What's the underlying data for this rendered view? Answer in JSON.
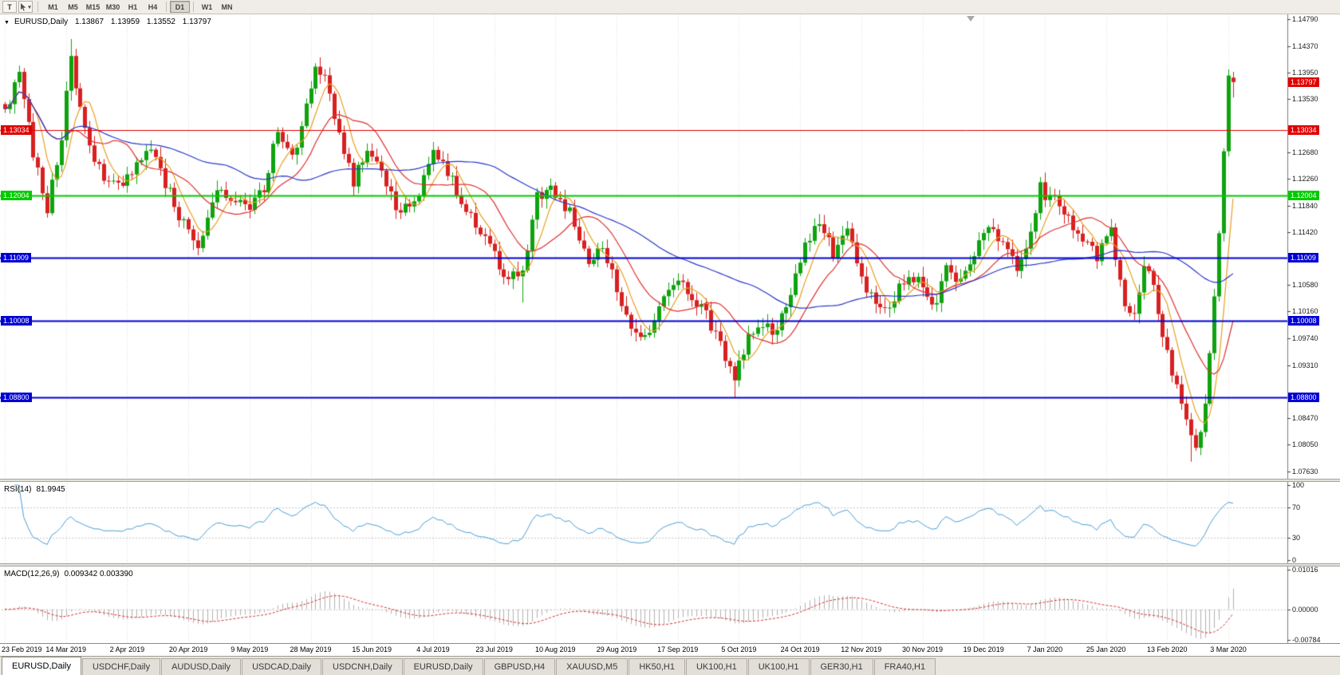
{
  "toolbar": {
    "text_tool_label": "T",
    "periods": [
      "M1",
      "M5",
      "M15",
      "M30",
      "H1",
      "H4",
      "D1",
      "W1",
      "MN"
    ],
    "active_period": "D1"
  },
  "header": {
    "symbol": "EURUSD,Daily",
    "open": "1.13867",
    "high": "1.13959",
    "low": "1.13552",
    "close": "1.13797"
  },
  "rsi": {
    "label": "RSI(14)",
    "value": "81.9945",
    "ticks": [
      "100",
      "70",
      "30",
      "0"
    ]
  },
  "macd": {
    "label": "MACD(12,26,9)",
    "values": "0.009342 0.003390",
    "ticks": [
      "0.01016",
      "0.00000",
      "-0.00784"
    ]
  },
  "price_axis": {
    "ticks": [
      "1.14790",
      "1.14370",
      "1.13950",
      "1.13530",
      "1.12680",
      "1.12260",
      "1.11840",
      "1.11420",
      "1.10580",
      "1.10160",
      "1.09740",
      "1.09310",
      "1.08470",
      "1.08050",
      "1.07630"
    ]
  },
  "dates": [
    "23 Feb 2019",
    "14 Mar 2019",
    "2 Apr 2019",
    "20 Apr 2019",
    "9 May 2019",
    "28 May 2019",
    "15 Jun 2019",
    "4 Jul 2019",
    "23 Jul 2019",
    "10 Aug 2019",
    "29 Aug 2019",
    "17 Sep 2019",
    "5 Oct 2019",
    "24 Oct 2019",
    "12 Nov 2019",
    "30 Nov 2019",
    "19 Dec 2019",
    "7 Jan 2020",
    "25 Jan 2020",
    "13 Feb 2020",
    "3 Mar 2020"
  ],
  "tabs": [
    {
      "label": "EURUSD,Daily",
      "active": true
    },
    {
      "label": "USDCHF,Daily",
      "active": false
    },
    {
      "label": "AUDUSD,Daily",
      "active": false
    },
    {
      "label": "USDCAD,Daily",
      "active": false
    },
    {
      "label": "USDCNH,Daily",
      "active": false
    },
    {
      "label": "EURUSD,Daily",
      "active": false
    },
    {
      "label": "GBPUSD,H4",
      "active": false
    },
    {
      "label": "XAUUSD,M5",
      "active": false
    },
    {
      "label": "HK50,H1",
      "active": false
    },
    {
      "label": "UK100,H1",
      "active": false
    },
    {
      "label": "UK100,H1",
      "active": false
    },
    {
      "label": "GER30,H1",
      "active": false
    },
    {
      "label": "FRA40,H1",
      "active": false
    }
  ],
  "chart_data": {
    "type": "candlestick",
    "title": "EURUSD,Daily",
    "x_labels": [
      "23 Feb 2019",
      "14 Mar 2019",
      "2 Apr 2019",
      "20 Apr 2019",
      "9 May 2019",
      "28 May 2019",
      "15 Jun 2019",
      "4 Jul 2019",
      "23 Jul 2019",
      "10 Aug 2019",
      "29 Aug 2019",
      "17 Sep 2019",
      "5 Oct 2019",
      "24 Oct 2019",
      "12 Nov 2019",
      "30 Nov 2019",
      "19 Dec 2019",
      "7 Jan 2020",
      "25 Jan 2020",
      "13 Feb 2020",
      "3 Mar 2020"
    ],
    "bars_per_label": 13,
    "bar_count": 262,
    "y_axis": {
      "min": 1.0751,
      "max": 1.1487
    },
    "close_anchors": [
      [
        0,
        1.1335
      ],
      [
        3,
        1.139
      ],
      [
        6,
        1.127
      ],
      [
        9,
        1.118
      ],
      [
        12,
        1.1285
      ],
      [
        14,
        1.143
      ],
      [
        16,
        1.133
      ],
      [
        20,
        1.124
      ],
      [
        24,
        1.121
      ],
      [
        28,
        1.1255
      ],
      [
        31,
        1.128
      ],
      [
        34,
        1.122
      ],
      [
        38,
        1.1155
      ],
      [
        41,
        1.112
      ],
      [
        45,
        1.1215
      ],
      [
        49,
        1.119
      ],
      [
        52,
        1.118
      ],
      [
        55,
        1.1215
      ],
      [
        58,
        1.13
      ],
      [
        61,
        1.1255
      ],
      [
        63,
        1.131
      ],
      [
        66,
        1.1395
      ],
      [
        68,
        1.138
      ],
      [
        71,
        1.13
      ],
      [
        74,
        1.1225
      ],
      [
        77,
        1.127
      ],
      [
        80,
        1.124
      ],
      [
        84,
        1.117
      ],
      [
        88,
        1.121
      ],
      [
        91,
        1.127
      ],
      [
        95,
        1.122
      ],
      [
        99,
        1.117
      ],
      [
        103,
        1.112
      ],
      [
        107,
        1.1065
      ],
      [
        110,
        1.1085
      ],
      [
        113,
        1.12
      ],
      [
        116,
        1.1205
      ],
      [
        120,
        1.117
      ],
      [
        124,
        1.1095
      ],
      [
        127,
        1.112
      ],
      [
        130,
        1.105
      ],
      [
        133,
        1.099
      ],
      [
        136,
        1.097
      ],
      [
        140,
        1.104
      ],
      [
        143,
        1.107
      ],
      [
        146,
        1.103
      ],
      [
        149,
        1.1015
      ],
      [
        152,
        1.096
      ],
      [
        155,
        1.0905
      ],
      [
        158,
        1.0985
      ],
      [
        161,
        1.1
      ],
      [
        164,
        1.0985
      ],
      [
        167,
        1.105
      ],
      [
        170,
        1.112
      ],
      [
        173,
        1.1155
      ],
      [
        176,
        1.111
      ],
      [
        179,
        1.1155
      ],
      [
        182,
        1.107
      ],
      [
        185,
        1.102
      ],
      [
        188,
        1.103
      ],
      [
        191,
        1.106
      ],
      [
        194,
        1.1075
      ],
      [
        197,
        1.102
      ],
      [
        200,
        1.108
      ],
      [
        203,
        1.106
      ],
      [
        206,
        1.111
      ],
      [
        209,
        1.1145
      ],
      [
        212,
        1.112
      ],
      [
        215,
        1.108
      ],
      [
        218,
        1.114
      ],
      [
        220,
        1.121
      ],
      [
        223,
        1.119
      ],
      [
        226,
        1.116
      ],
      [
        229,
        1.1125
      ],
      [
        232,
        1.1105
      ],
      [
        235,
        1.114
      ],
      [
        238,
        1.103
      ],
      [
        240,
        1.1005
      ],
      [
        242,
        1.109
      ],
      [
        244,
        1.1055
      ],
      [
        246,
        1.098
      ],
      [
        248,
        1.092
      ],
      [
        250,
        1.087
      ],
      [
        252,
        1.082
      ],
      [
        253,
        1.08
      ],
      [
        254,
        1.0825
      ],
      [
        255,
        1.087
      ],
      [
        256,
        1.095
      ],
      [
        257,
        1.104
      ],
      [
        258,
        1.114
      ],
      [
        259,
        1.127
      ],
      [
        260,
        1.139
      ],
      [
        261,
        1.13797
      ]
    ],
    "last_bar": {
      "open": 1.13867,
      "high": 1.13959,
      "low": 1.13552,
      "close": 1.13797
    },
    "key_wicks": [
      {
        "i": 14,
        "h": 1.1448
      },
      {
        "i": 41,
        "l": 1.1105
      },
      {
        "i": 110,
        "l": 1.103
      },
      {
        "i": 155,
        "l": 1.0879
      },
      {
        "i": 252,
        "l": 1.0778
      },
      {
        "i": 260,
        "h": 1.14
      }
    ],
    "horizontal_lines": [
      {
        "price": "1.13034",
        "value": 1.13034,
        "color": "#e00000",
        "width": 1
      },
      {
        "price": "1.12004",
        "value": 1.12004,
        "color": "#00ca00",
        "width": 2
      },
      {
        "price": "1.11009",
        "value": 1.11009,
        "color": "#0000d4",
        "width": 2
      },
      {
        "price": "1.10008",
        "value": 1.10008,
        "color": "#0000d4",
        "width": 2
      },
      {
        "price": "1.08800",
        "value": 1.088,
        "color": "#0000d4",
        "width": 2
      }
    ],
    "current_price": {
      "label": "1.13797",
      "value": 1.13797,
      "color": "#e00000"
    },
    "moving_averages": [
      {
        "period": 6,
        "color": "#e8a020"
      },
      {
        "period": 14,
        "color": "#e03030"
      },
      {
        "period": 48,
        "color": "#2838c8"
      }
    ],
    "candle_colors": {
      "bull": "#0fa30f",
      "bear": "#d82020"
    },
    "indicators": [
      {
        "name": "RSI",
        "period": 14,
        "value": 81.9945,
        "color": "#4a9fd8",
        "levels": [
          100,
          70,
          30,
          0
        ]
      },
      {
        "name": "MACD",
        "fast": 12,
        "slow": 26,
        "signal": 9,
        "main_value": 0.009342,
        "signal_value": 0.00339,
        "histogram_color": "#b2b2b2",
        "signal_color": "#d83030",
        "axis_max": 0.01016,
        "axis_min": -0.00784
      }
    ]
  }
}
